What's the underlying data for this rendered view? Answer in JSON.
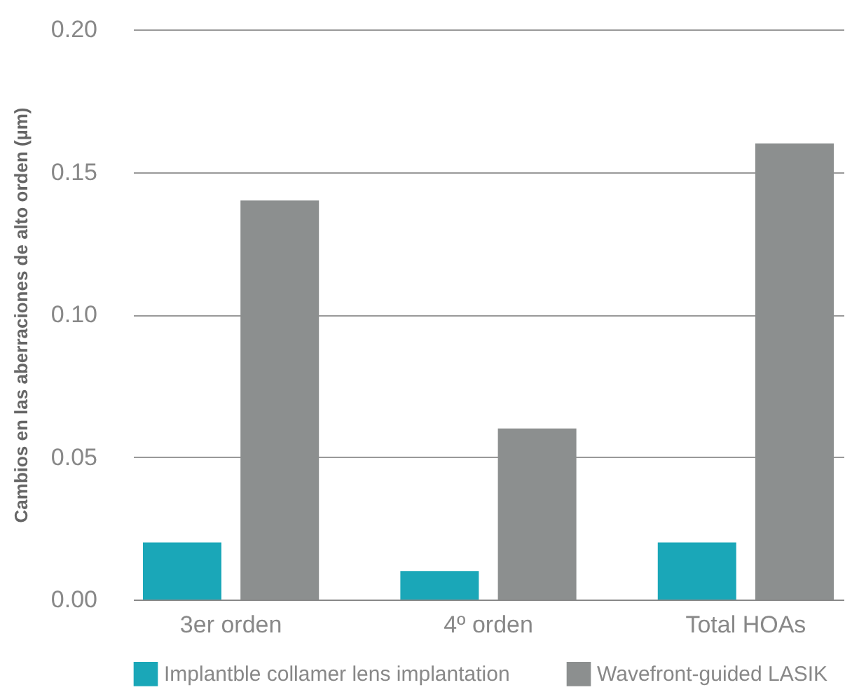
{
  "chart_data": {
    "type": "bar",
    "ylabel": "Cambios en las aberraciones de alto orden (µm)",
    "categories": [
      "3er orden",
      "4º orden",
      "Total HOAs"
    ],
    "series": [
      {
        "name": "Implantble collamer lens implantation",
        "color": "#1aa7b8",
        "values": [
          0.02,
          0.01,
          0.02
        ]
      },
      {
        "name": "Wavefront-guided LASIK",
        "color": "#8c8f8f",
        "values": [
          0.14,
          0.06,
          0.16
        ]
      }
    ],
    "ylim": [
      0,
      0.2
    ],
    "yticks": [
      {
        "value": 0,
        "label": "0.00"
      },
      {
        "value": 0.05,
        "label": "0.05"
      },
      {
        "value": 0.1,
        "label": "0.10"
      },
      {
        "value": 0.15,
        "label": "0.15"
      },
      {
        "value": 0.2,
        "label": "0.20"
      }
    ],
    "grid": "y",
    "legend": "bottom"
  }
}
